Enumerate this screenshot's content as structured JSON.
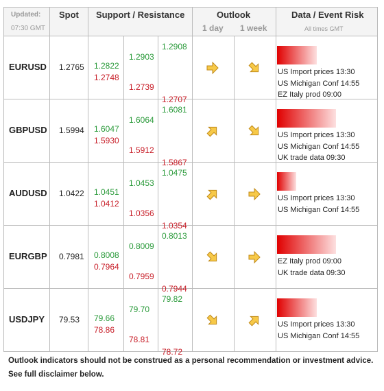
{
  "header": {
    "updated": "Updated:",
    "time": "07:30 GMT",
    "spot": "Spot",
    "support_resistance": "Support / Resistance",
    "outlook": "Outlook",
    "outlook_1day": "1 day",
    "outlook_1week": "1 week",
    "events": "Data / Event Risk",
    "events_note": "All times GMT"
  },
  "rows": [
    {
      "pair": "EURUSD",
      "spot": "1.2765",
      "levels": [
        [
          "1.2822",
          "1.2748"
        ],
        [
          "1.2903",
          "1.2739"
        ],
        [
          "1.2908",
          "1.2707"
        ]
      ],
      "events": [
        "US Import prices 13:30",
        "US Michigan Conf 14:55",
        "EZ Italy prod 09:00"
      ]
    },
    {
      "pair": "GBPUSD",
      "spot": "1.5994",
      "levels": [
        [
          "1.6047",
          "1.5930"
        ],
        [
          "1.6064",
          "1.5912"
        ],
        [
          "1.6081",
          "1.5867"
        ]
      ],
      "events": [
        "US Import prices 13:30",
        "US Michigan Conf 14:55",
        "UK trade data 09:30"
      ]
    },
    {
      "pair": "AUDUSD",
      "spot": "1.0422",
      "levels": [
        [
          "1.0451",
          "1.0412"
        ],
        [
          "1.0453",
          "1.0356"
        ],
        [
          "1.0475",
          "1.0354"
        ]
      ],
      "events": [
        "US Import prices 13:30",
        "US Michigan Conf 14:55"
      ]
    },
    {
      "pair": "EURGBP",
      "spot": "0.7981",
      "levels": [
        [
          "0.8008",
          "0.7964"
        ],
        [
          "0.8009",
          "0.7959"
        ],
        [
          "0.8013",
          "0.7944"
        ]
      ],
      "events": [
        "EZ Italy prod 09:00",
        "UK trade data 09:30"
      ]
    },
    {
      "pair": "USDJPY",
      "spot": "79.53",
      "levels": [
        [
          "79.66",
          "78.86"
        ],
        [
          "79.70",
          "78.81"
        ],
        [
          "79.82",
          "78.72"
        ]
      ],
      "events": [
        "US Import prices 13:30",
        "US Michigan Conf 14:55"
      ]
    }
  ],
  "footer": [
    "Outlook indicators should not be construed as a personal recommendation or investment advice.",
    "See full disclaimer below."
  ]
}
